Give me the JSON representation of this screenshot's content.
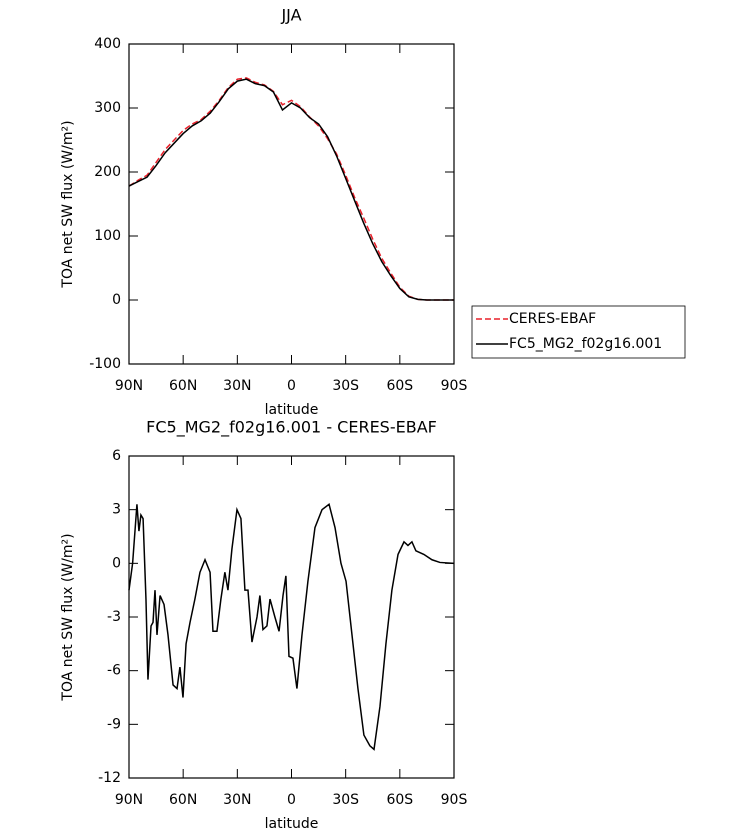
{
  "chart_data": [
    {
      "type": "line",
      "title": "JJA",
      "x_label": "latitude",
      "y_label": "TOA net SW flux (W/m²)",
      "x": [
        90,
        85,
        80,
        75,
        70,
        65,
        60,
        55,
        50,
        45,
        40,
        35,
        30,
        25,
        20,
        15,
        10,
        5,
        0,
        -5,
        -10,
        -15,
        -20,
        -25,
        -30,
        -35,
        -40,
        -45,
        -50,
        -55,
        -60,
        -65,
        -70,
        -75,
        -80,
        -85,
        -90
      ],
      "series": [
        {
          "name": "CERES-EBAF",
          "color": "#e8202a",
          "line_style": "dashed",
          "values": [
            178,
            187,
            195,
            215,
            235,
            250,
            265,
            275,
            282,
            295,
            312,
            332,
            345,
            347,
            340,
            336,
            326,
            305,
            312,
            302,
            286,
            272,
            252,
            228,
            195,
            160,
            128,
            95,
            65,
            42,
            20,
            6,
            1,
            0,
            0,
            0,
            0
          ]
        },
        {
          "name": "FC5_MG2_f02g16.001",
          "color": "#000000",
          "line_style": "solid",
          "values": [
            178,
            185,
            192,
            210,
            230,
            245,
            260,
            272,
            280,
            292,
            310,
            330,
            342,
            345,
            338,
            335,
            325,
            297,
            308,
            300,
            285,
            275,
            255,
            225,
            190,
            155,
            120,
            88,
            60,
            38,
            18,
            5,
            1,
            0,
            0,
            0,
            0
          ]
        }
      ],
      "xlim": [
        90,
        -90
      ],
      "xticks": [
        {
          "value": 90,
          "label": "90N"
        },
        {
          "value": 60,
          "label": "60N"
        },
        {
          "value": 30,
          "label": "30N"
        },
        0,
        {
          "value": -30,
          "label": "30S"
        },
        {
          "value": -60,
          "label": "60S"
        },
        {
          "value": -90,
          "label": "90S"
        }
      ],
      "ylim": [
        -100,
        400
      ],
      "yticks": [
        -100,
        0,
        100,
        200,
        300,
        400
      ],
      "legend": "right"
    },
    {
      "type": "line",
      "title": "FC5_MG2_f02g16.001 - CERES-EBAF",
      "x_label": "latitude",
      "y_label": "TOA net SW flux (W/m²)",
      "x": [
        90,
        88,
        85.6,
        84.5,
        83.4,
        82.2,
        80.6,
        79.5,
        77.8,
        76.7,
        75.6,
        74.5,
        72.8,
        70.6,
        68.4,
        65.6,
        63.4,
        61.8,
        60.1,
        58.4,
        56.2,
        53.5,
        50.7,
        47.9,
        45.1,
        43.5,
        41.3,
        39.1,
        36.9,
        35.2,
        33,
        30.2,
        28,
        25.8,
        24.1,
        21.9,
        19.1,
        17.5,
        15.8,
        13.6,
        11.9,
        9.2,
        6.9,
        4.7,
        3.1,
        1.4,
        -0.8,
        -3,
        -5.8,
        -9.1,
        -13,
        -16.9,
        -20.8,
        -24.1,
        -27.4,
        -30.2,
        -33.5,
        -36.8,
        -40.1,
        -43.4,
        -45.7,
        -49,
        -52.3,
        -55.6,
        -59,
        -62.3,
        -64.5,
        -66.7,
        -68.9,
        -73.3,
        -77.8,
        -82.2,
        -90
      ],
      "series": [
        {
          "name": "FC5_MG2_f02g16.001 - CERES-EBAF",
          "color": "#000000",
          "line_style": "solid",
          "values": [
            -1.5,
            0,
            3.3,
            1.8,
            2.7,
            2.5,
            -2,
            -6.5,
            -3.5,
            -3.3,
            -1.5,
            -4,
            -1.8,
            -2.3,
            -4,
            -6.8,
            -7,
            -5.8,
            -7.5,
            -4.5,
            -3.3,
            -2,
            -0.5,
            0.2,
            -0.5,
            -3.8,
            -3.8,
            -2,
            -0.5,
            -1.5,
            0.8,
            3,
            2.5,
            -1.5,
            -1.5,
            -4.4,
            -3,
            -1.8,
            -3.7,
            -3.5,
            -2,
            -3,
            -3.8,
            -1.8,
            -0.7,
            -5.2,
            -5.3,
            -7,
            -4,
            -1,
            2,
            3,
            3.3,
            2,
            0,
            -1,
            -4,
            -7,
            -9.6,
            -10.2,
            -10.4,
            -8,
            -4.5,
            -1.5,
            0.5,
            1.2,
            1,
            1.2,
            0.7,
            0.5,
            0.2,
            0.05,
            0
          ]
        }
      ],
      "xlim": [
        90,
        -90
      ],
      "xticks": [
        {
          "value": 90,
          "label": "90N"
        },
        {
          "value": 60,
          "label": "60N"
        },
        {
          "value": 30,
          "label": "30N"
        },
        0,
        {
          "value": -30,
          "label": "30S"
        },
        {
          "value": -60,
          "label": "60S"
        },
        {
          "value": -90,
          "label": "90S"
        }
      ],
      "ylim": [
        -12,
        6
      ],
      "yticks": [
        -12,
        -9,
        -6,
        -3,
        0,
        3,
        6
      ]
    }
  ]
}
